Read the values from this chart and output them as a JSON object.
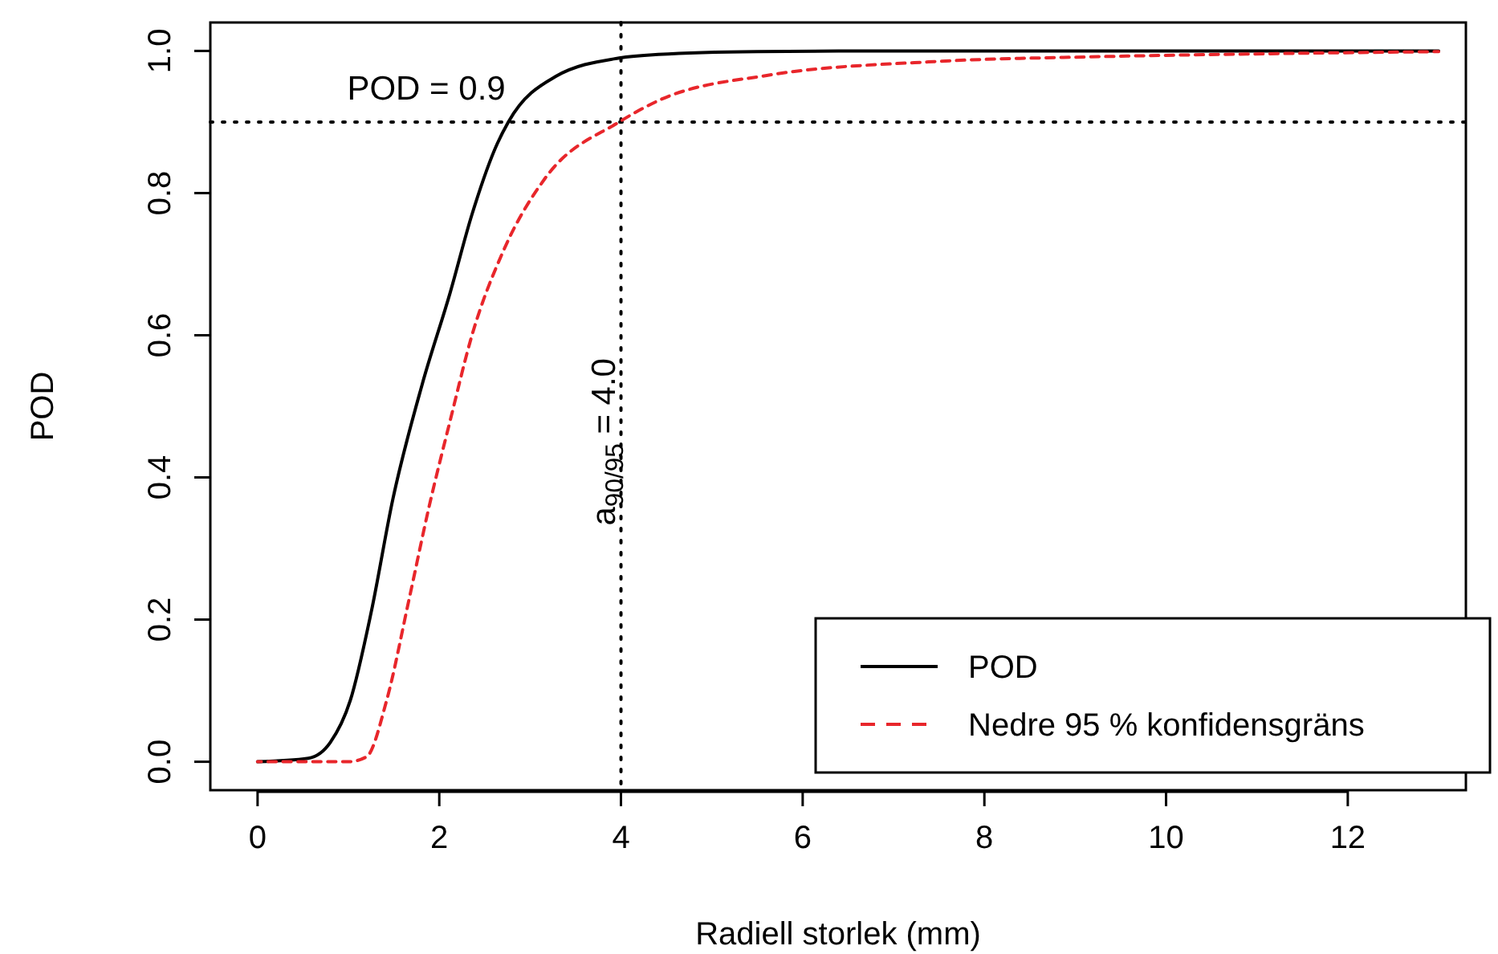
{
  "chart_data": {
    "type": "line",
    "xlabel": "Radiell storlek (mm)",
    "ylabel": "POD",
    "xlim": [
      -0.52,
      13.3
    ],
    "ylim": [
      -0.04,
      1.04
    ],
    "xticks": [
      0,
      2,
      4,
      6,
      8,
      10,
      12
    ],
    "yticks": [
      {
        "value": 0,
        "label": "0.0"
      },
      {
        "value": 0.2,
        "label": "0.2"
      },
      {
        "value": 0.4,
        "label": "0.4"
      },
      {
        "value": 0.6,
        "label": "0.6"
      },
      {
        "value": 0.8,
        "label": "0.8"
      },
      {
        "value": 1,
        "label": "1.0"
      }
    ],
    "grid": false,
    "legend": "bottom right",
    "marker": "none",
    "series": [
      {
        "name": "POD",
        "color": "#000000",
        "line_style": "solid",
        "x": [
          0,
          0.56,
          0.8,
          1.02,
          1.25,
          1.49,
          1.81,
          2.12,
          2.36,
          2.64,
          2.76,
          3.28,
          3.98,
          4.41,
          5.5,
          7,
          9,
          11,
          13
        ],
        "values": [
          0,
          0.005,
          0.027,
          0.086,
          0.21,
          0.37,
          0.53,
          0.66,
          0.77,
          0.87,
          0.9,
          0.964,
          0.99,
          0.995,
          0.999,
          1,
          1,
          1,
          1
        ]
      },
      {
        "name": "Nedre 95 % konfidensgräns",
        "color": "#e8262b",
        "line_style": "dashed",
        "x": [
          0,
          1,
          1.2,
          1.42,
          1.67,
          1.89,
          2.12,
          2.36,
          2.71,
          3.16,
          3.98,
          4.41,
          5.63,
          7.45,
          9.29,
          11.1,
          13
        ],
        "values": [
          0,
          0,
          0.007,
          0.086,
          0.23,
          0.36,
          0.48,
          0.6,
          0.72,
          0.82,
          0.9,
          0.93,
          0.966,
          0.985,
          0.992,
          0.996,
          0.999
        ]
      }
    ],
    "ref_lines": [
      {
        "axis": "y",
        "value": 0.9,
        "label": "POD = 0.9",
        "line_style": "dotted",
        "color": "#000000"
      },
      {
        "axis": "x",
        "value": 4.0,
        "label": "a$_{90/95}$ = 4.0",
        "line_style": "dotted",
        "color": "#000000"
      }
    ]
  }
}
